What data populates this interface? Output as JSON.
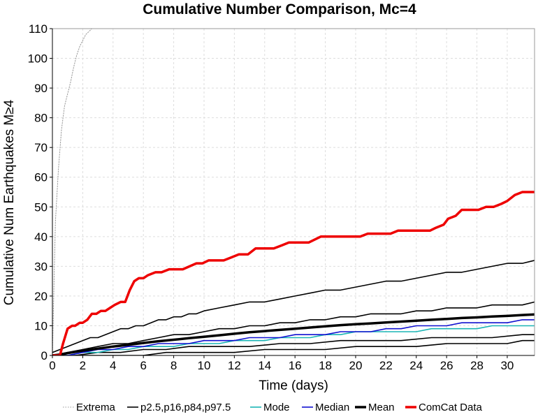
{
  "chart_data": {
    "type": "line",
    "title": "Cumulative Number Comparison, Mc=4",
    "xlabel": "Time (days)",
    "ylabel": "Cumulative Num Earthquakes M≥4",
    "xlim": [
      0,
      31.8
    ],
    "ylim": [
      0,
      110
    ],
    "xticks": [
      0,
      2,
      4,
      6,
      8,
      10,
      12,
      14,
      16,
      18,
      20,
      22,
      24,
      26,
      28,
      30
    ],
    "yticks": [
      0,
      10,
      20,
      30,
      40,
      50,
      60,
      70,
      80,
      90,
      100,
      110
    ],
    "grid": true,
    "legend_position": "bottom",
    "legend": [
      {
        "label": "Extrema",
        "color": "#999999",
        "style": "dotted",
        "width": 1
      },
      {
        "label": "p2.5,p16,p84,p97.5",
        "color": "#000000",
        "style": "solid",
        "width": 1.6
      },
      {
        "label": "Mode",
        "color": "#1ab5b5",
        "style": "solid",
        "width": 1.6
      },
      {
        "label": "Median",
        "color": "#1010d0",
        "style": "solid",
        "width": 1.6
      },
      {
        "label": "Mean",
        "color": "#000000",
        "style": "solid",
        "width": 3.5
      },
      {
        "label": "ComCat Data",
        "color": "#ee0000",
        "style": "solid",
        "width": 3.5
      }
    ],
    "series": [
      {
        "name": "Extrema",
        "color": "#999999",
        "width": 1,
        "dash": "1.5,2",
        "x": [
          0,
          0.2,
          0.4,
          0.6,
          0.8,
          1.0,
          1.2,
          1.4,
          1.6,
          1.8,
          2.0,
          2.2,
          2.4,
          2.6
        ],
        "y": [
          0,
          45,
          63,
          76,
          84,
          88,
          92,
          97,
          101,
          104,
          106,
          108,
          109,
          110
        ]
      },
      {
        "name": "p97.5",
        "color": "#000000",
        "width": 1.6,
        "x": [
          0,
          0.5,
          1,
          1.5,
          2,
          2.5,
          3,
          3.5,
          4,
          4.5,
          5,
          5.5,
          6,
          6.5,
          7,
          7.5,
          8,
          8.5,
          9,
          9.5,
          10,
          11,
          12,
          13,
          14,
          15,
          16,
          17,
          18,
          19,
          20,
          21,
          22,
          23,
          24,
          25,
          26,
          27,
          28,
          29,
          30,
          31,
          31.8
        ],
        "y": [
          1,
          2,
          3,
          4,
          5,
          6,
          6,
          7,
          8,
          9,
          9,
          10,
          10,
          11,
          12,
          12,
          13,
          13,
          14,
          14,
          15,
          16,
          17,
          18,
          18,
          19,
          20,
          21,
          22,
          22,
          23,
          24,
          25,
          25,
          26,
          27,
          28,
          28,
          29,
          30,
          31,
          31,
          32
        ]
      },
      {
        "name": "p84",
        "color": "#000000",
        "width": 1.6,
        "x": [
          0,
          1,
          2,
          3,
          4,
          5,
          6,
          7,
          8,
          9,
          10,
          11,
          12,
          13,
          14,
          15,
          16,
          17,
          18,
          19,
          20,
          21,
          22,
          23,
          24,
          25,
          26,
          27,
          28,
          29,
          30,
          31,
          31.8
        ],
        "y": [
          0,
          1,
          2,
          3,
          4,
          4,
          5,
          6,
          7,
          7,
          8,
          9,
          9,
          10,
          10,
          11,
          11,
          12,
          12,
          13,
          13,
          14,
          14,
          14,
          15,
          15,
          16,
          16,
          16,
          17,
          17,
          17,
          18
        ]
      },
      {
        "name": "p16",
        "color": "#000000",
        "width": 1.6,
        "x": [
          0,
          1.5,
          3,
          4.5,
          6,
          7.5,
          9,
          11,
          13,
          15,
          17,
          19,
          21,
          23,
          25,
          27,
          29,
          31,
          31.8
        ],
        "y": [
          0,
          0,
          1,
          1,
          2,
          2,
          3,
          3,
          3,
          4,
          4,
          5,
          5,
          5,
          6,
          6,
          6,
          7,
          7
        ]
      },
      {
        "name": "p2.5",
        "color": "#000000",
        "width": 1.6,
        "x": [
          0,
          3,
          4.5,
          6,
          7.5,
          10,
          12,
          14,
          16,
          18,
          20,
          22,
          24,
          26,
          28,
          30,
          31,
          31.8
        ],
        "y": [
          0,
          0,
          0,
          0,
          1,
          1,
          1,
          2,
          2,
          2,
          3,
          3,
          3,
          4,
          4,
          4,
          5,
          5
        ]
      },
      {
        "name": "Mode",
        "color": "#1ab5b5",
        "width": 1.6,
        "x": [
          0,
          1,
          2,
          3,
          4,
          5,
          6,
          7,
          8,
          9,
          10,
          11,
          12,
          13,
          14,
          15,
          16,
          17,
          18,
          19,
          20,
          21,
          22,
          23,
          24,
          25,
          26,
          27,
          28,
          29,
          30,
          31,
          31.8
        ],
        "y": [
          0,
          0,
          1,
          1,
          2,
          2,
          3,
          3,
          3,
          4,
          4,
          4,
          5,
          5,
          5,
          6,
          6,
          6,
          7,
          7,
          8,
          8,
          8,
          8,
          8,
          9,
          9,
          9,
          9,
          10,
          10,
          10,
          10
        ]
      },
      {
        "name": "Median",
        "color": "#1010d0",
        "width": 1.6,
        "x": [
          0,
          1,
          2,
          3,
          4,
          5,
          6,
          7,
          8,
          9,
          10,
          11,
          12,
          13,
          14,
          15,
          16,
          17,
          18,
          19,
          20,
          21,
          22,
          23,
          24,
          25,
          26,
          27,
          28,
          29,
          30,
          31,
          31.8
        ],
        "y": [
          0,
          0,
          1,
          2,
          2,
          3,
          3,
          4,
          4,
          4,
          5,
          5,
          5,
          6,
          6,
          6,
          7,
          7,
          7,
          8,
          8,
          8,
          9,
          9,
          10,
          10,
          10,
          11,
          11,
          11,
          11,
          12,
          12
        ]
      },
      {
        "name": "Mean",
        "color": "#000000",
        "width": 3.5,
        "x": [
          0,
          0.5,
          1,
          2,
          3,
          4,
          5,
          6,
          7,
          8,
          9,
          10,
          11,
          12,
          13,
          14,
          15,
          16,
          17,
          18,
          19,
          20,
          21,
          22,
          23,
          24,
          25,
          26,
          27,
          28,
          29,
          30,
          31,
          31.8
        ],
        "y": [
          0,
          0.3,
          0.8,
          1.6,
          2.3,
          3.0,
          3.6,
          4.2,
          4.8,
          5.3,
          5.8,
          6.3,
          6.8,
          7.3,
          7.8,
          8.2,
          8.6,
          9.0,
          9.4,
          9.8,
          10.2,
          10.5,
          10.8,
          11.1,
          11.4,
          11.7,
          12.0,
          12.3,
          12.6,
          12.8,
          13.1,
          13.3,
          13.6,
          13.8
        ]
      },
      {
        "name": "ComCat Data",
        "color": "#ee0000",
        "width": 3.5,
        "x": [
          0,
          0.5,
          0.7,
          1.0,
          1.3,
          1.5,
          1.8,
          2.0,
          2.3,
          2.6,
          2.9,
          3.2,
          3.5,
          3.8,
          4.1,
          4.5,
          4.8,
          5.1,
          5.4,
          5.7,
          6.0,
          6.3,
          6.8,
          7.2,
          7.7,
          8.2,
          8.6,
          9.5,
          9.9,
          10.3,
          10.7,
          11.3,
          11.8,
          12.3,
          12.9,
          13.4,
          13.8,
          14.6,
          15.1,
          15.6,
          16.4,
          16.9,
          17.3,
          17.7,
          18.5,
          19.2,
          19.8,
          20.3,
          20.8,
          21.5,
          21.9,
          22.3,
          22.8,
          23.4,
          23.9,
          24.4,
          24.9,
          25.3,
          25.8,
          26.1,
          26.6,
          27.0,
          27.6,
          28.1,
          28.6,
          29.1,
          29.6,
          30.0,
          30.5,
          31.0,
          31.8
        ],
        "y": [
          0,
          0,
          4,
          9,
          10,
          10,
          11,
          11,
          12,
          14,
          14,
          15,
          15,
          16,
          17,
          18,
          18,
          22,
          25,
          26,
          26,
          27,
          28,
          28,
          29,
          29,
          29,
          31,
          31,
          32,
          32,
          32,
          33,
          34,
          34,
          36,
          36,
          36,
          37,
          38,
          38,
          38,
          39,
          40,
          40,
          40,
          40,
          40,
          41,
          41,
          41,
          41,
          42,
          42,
          42,
          42,
          42,
          43,
          44,
          46,
          47,
          49,
          49,
          49,
          50,
          50,
          51,
          52,
          54,
          55,
          55
        ]
      }
    ]
  }
}
